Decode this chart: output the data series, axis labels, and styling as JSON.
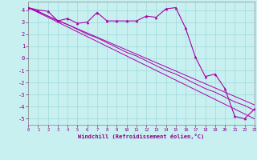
{
  "xlabel": "Windchill (Refroidissement éolien,°C)",
  "bg_color": "#c8f0f0",
  "line_color": "#aa00aa",
  "grid_color": "#9fd8d8",
  "hours": [
    0,
    1,
    2,
    3,
    4,
    5,
    6,
    7,
    8,
    9,
    10,
    11,
    12,
    13,
    14,
    15,
    16,
    17,
    18,
    19,
    20,
    21,
    22,
    23
  ],
  "windchill": [
    4.2,
    4.0,
    3.9,
    3.1,
    3.3,
    2.9,
    3.0,
    3.8,
    3.1,
    3.1,
    3.1,
    3.1,
    3.5,
    3.4,
    4.1,
    4.2,
    2.5,
    0.1,
    -1.5,
    -1.3,
    -2.5,
    -4.8,
    -5.0,
    -4.2
  ],
  "trend1": [
    4.2,
    3.9,
    3.5,
    3.1,
    2.8,
    2.4,
    2.0,
    1.7,
    1.3,
    0.9,
    0.5,
    0.2,
    -0.2,
    -0.6,
    -1.0,
    -1.3,
    -1.7,
    -2.1,
    -2.5,
    -2.8,
    -3.2,
    -3.6,
    -3.9,
    -4.3
  ],
  "trend2": [
    4.2,
    3.85,
    3.5,
    3.15,
    2.8,
    2.45,
    2.1,
    1.75,
    1.4,
    1.05,
    0.7,
    0.35,
    0.0,
    -0.35,
    -0.7,
    -1.05,
    -1.4,
    -1.75,
    -2.1,
    -2.45,
    -2.8,
    -3.15,
    -3.5,
    -3.85
  ],
  "trend3": [
    4.2,
    3.8,
    3.4,
    3.0,
    2.6,
    2.2,
    1.8,
    1.4,
    1.0,
    0.6,
    0.2,
    -0.2,
    -0.6,
    -1.0,
    -1.4,
    -1.8,
    -2.2,
    -2.6,
    -3.0,
    -3.4,
    -3.8,
    -4.2,
    -4.6,
    -5.0
  ],
  "xlim": [
    0,
    23
  ],
  "ylim": [
    -5.5,
    4.7
  ],
  "yticks": [
    -5,
    -4,
    -3,
    -2,
    -1,
    0,
    1,
    2,
    3,
    4
  ],
  "xticks": [
    0,
    1,
    2,
    3,
    4,
    5,
    6,
    7,
    8,
    9,
    10,
    11,
    12,
    13,
    14,
    15,
    16,
    17,
    18,
    19,
    20,
    21,
    22,
    23
  ],
  "spine_color": "#888888",
  "tick_color": "#880088",
  "xlabel_color": "#880088"
}
